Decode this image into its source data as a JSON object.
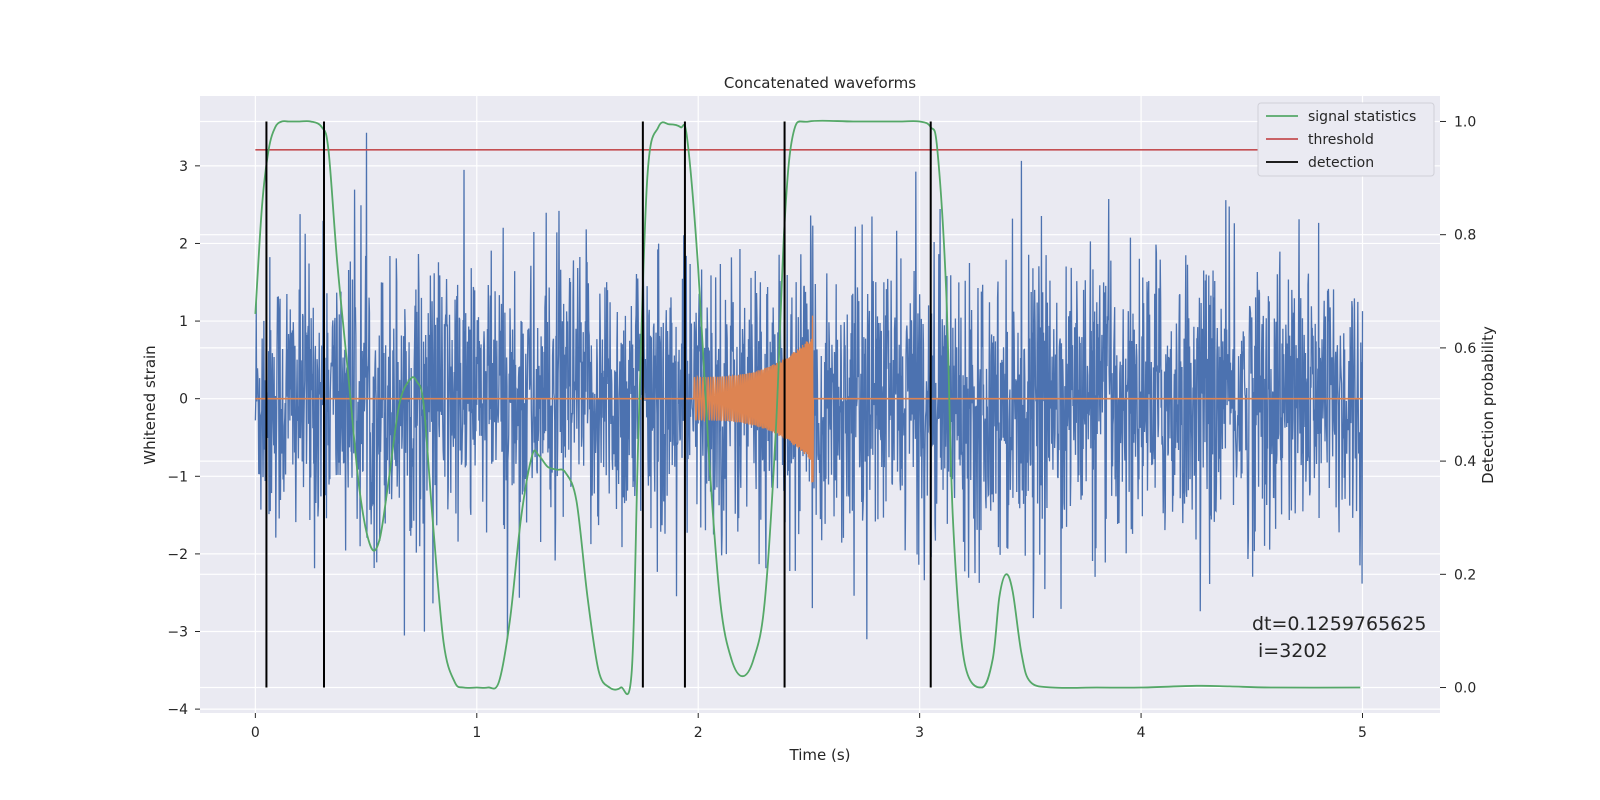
{
  "chart_data": {
    "type": "line",
    "title": "Concatenated waveforms",
    "xlabel": "Time (s)",
    "ylabel_left": "Whitened strain",
    "ylabel_right": "Detection probability",
    "xlim": [
      -0.25,
      5.35
    ],
    "ylim_left": [
      -4.05,
      3.9
    ],
    "ylim_right": [
      -0.045,
      1.045
    ],
    "x_ticks": [
      0,
      1,
      2,
      3,
      4,
      5
    ],
    "x_tick_labels": [
      "0",
      "1",
      "2",
      "3",
      "4",
      "5"
    ],
    "y_left_ticks": [
      -4,
      -3,
      -2,
      -1,
      0,
      1,
      2,
      3
    ],
    "y_left_tick_labels": [
      "−4",
      "−3",
      "−2",
      "−1",
      "0",
      "1",
      "2",
      "3"
    ],
    "y_right_ticks": [
      0.0,
      0.2,
      0.4,
      0.6,
      0.8,
      1.0
    ],
    "y_right_tick_labels": [
      "0.0",
      "0.2",
      "0.4",
      "0.6",
      "0.8",
      "1.0"
    ],
    "grid": true,
    "legend_position": "top-right",
    "colors": {
      "strain": "#4c72b0",
      "injection": "#dd8452",
      "signal_statistics": "#55a868",
      "threshold": "#c44e52",
      "detection": "#000000",
      "plot_background": "#eaeaf2",
      "grid": "#ffffff"
    },
    "series": [
      {
        "name": "",
        "axis": "left",
        "kind": "noise",
        "x_range": [
          0,
          5
        ],
        "amplitude_std": 0.9,
        "typical_range": [
          -2.5,
          3.5
        ]
      },
      {
        "name": "",
        "axis": "left",
        "kind": "chirp",
        "x_range": [
          1.98,
          2.52
        ],
        "peak_value": 1.1,
        "min_value": -0.98
      },
      {
        "name": "signal statistics",
        "axis": "right",
        "x": [
          0.0,
          0.03,
          0.06,
          0.09,
          0.12,
          0.15,
          0.2,
          0.25,
          0.3,
          0.33,
          0.37,
          0.42,
          0.47,
          0.52,
          0.56,
          0.6,
          0.65,
          0.7,
          0.73,
          0.76,
          0.8,
          0.85,
          0.9,
          0.94,
          1.0,
          1.05,
          1.1,
          1.15,
          1.2,
          1.25,
          1.28,
          1.32,
          1.36,
          1.4,
          1.45,
          1.5,
          1.55,
          1.6,
          1.65,
          1.7,
          1.73,
          1.77,
          1.82,
          1.87,
          1.92,
          1.95,
          2.0,
          2.05,
          2.1,
          2.15,
          2.2,
          2.25,
          2.3,
          2.35,
          2.39,
          2.43,
          2.5,
          2.7,
          2.9,
          3.0,
          3.05,
          3.08,
          3.12,
          3.15,
          3.2,
          3.28,
          3.33,
          3.36,
          3.39,
          3.42,
          3.46,
          3.5,
          3.6,
          3.8,
          4.0,
          4.25,
          4.4,
          4.6,
          4.99
        ],
        "values": [
          0.66,
          0.85,
          0.95,
          0.99,
          1.0,
          1.0,
          1.0,
          1.0,
          0.99,
          0.95,
          0.75,
          0.55,
          0.35,
          0.25,
          0.26,
          0.36,
          0.5,
          0.545,
          0.54,
          0.5,
          0.3,
          0.08,
          0.01,
          0.0,
          0.0,
          0.0,
          0.01,
          0.12,
          0.3,
          0.41,
          0.41,
          0.39,
          0.385,
          0.38,
          0.33,
          0.16,
          0.03,
          0.0,
          0.0,
          0.03,
          0.45,
          0.9,
          0.99,
          0.995,
          0.99,
          0.97,
          0.74,
          0.4,
          0.15,
          0.05,
          0.02,
          0.05,
          0.15,
          0.45,
          0.82,
          0.98,
          1.0,
          1.0,
          1.0,
          1.0,
          0.99,
          0.95,
          0.7,
          0.3,
          0.05,
          0.0,
          0.05,
          0.16,
          0.2,
          0.17,
          0.06,
          0.01,
          0.0,
          0.0,
          0.0,
          0.003,
          0.002,
          0.0,
          0.0
        ]
      },
      {
        "name": "threshold",
        "axis": "right",
        "x": [
          0,
          5
        ],
        "values": [
          0.95,
          0.95
        ]
      },
      {
        "name": "detection",
        "axis": "right",
        "vlines": [
          0.05,
          0.31,
          1.75,
          1.94,
          2.39,
          3.05
        ],
        "ymin": 0.0,
        "ymax": 1.0
      }
    ],
    "annotations": [
      "dt=0.1259765625",
      "i=3202"
    ]
  }
}
